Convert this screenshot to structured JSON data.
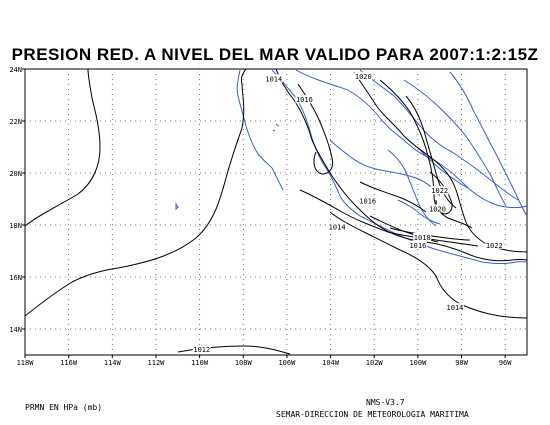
{
  "title": "PRESION RED. A NIVEL DEL MAR VALIDO PARA 2007:1:2:15Z",
  "footer": {
    "units": "PRMN EN HPa (mb)",
    "version": "NMS-V3.7",
    "agency": "SEMAR-DIRECCION DE METEOROLOGIA MARITIMA"
  },
  "axes": {
    "lon_range": [
      -118,
      -95
    ],
    "lat_range": [
      13,
      24
    ],
    "lat_ticks": [
      {
        "value": 24,
        "label": "24N"
      },
      {
        "value": 22,
        "label": "22N"
      },
      {
        "value": 20,
        "label": "20N"
      },
      {
        "value": 18,
        "label": "18N"
      },
      {
        "value": 16,
        "label": "16N"
      },
      {
        "value": 14,
        "label": "14N"
      }
    ],
    "lon_ticks": [
      {
        "value": -118,
        "label": "118W"
      },
      {
        "value": -116,
        "label": "116W"
      },
      {
        "value": -114,
        "label": "114W"
      },
      {
        "value": -112,
        "label": "112W"
      },
      {
        "value": -110,
        "label": "110W"
      },
      {
        "value": -108,
        "label": "108W"
      },
      {
        "value": -106,
        "label": "106W"
      },
      {
        "value": -104,
        "label": "104W"
      },
      {
        "value": -102,
        "label": "102W"
      },
      {
        "value": -100,
        "label": "100W"
      },
      {
        "value": -98,
        "label": "98W"
      },
      {
        "value": -96,
        "label": "96W"
      }
    ],
    "grid": "dotted"
  },
  "isobar_labels": [
    {
      "text": "1014",
      "lon": -106.6,
      "lat": 23.6
    },
    {
      "text": "1016",
      "lon": -105.2,
      "lat": 22.8
    },
    {
      "text": "1020",
      "lon": -102.5,
      "lat": 23.7
    },
    {
      "text": "1016",
      "lon": -102.3,
      "lat": 18.9
    },
    {
      "text": "1014",
      "lon": -103.7,
      "lat": 17.9
    },
    {
      "text": "1022",
      "lon": -99.0,
      "lat": 19.3
    },
    {
      "text": "1020",
      "lon": -99.1,
      "lat": 18.6
    },
    {
      "text": "1018",
      "lon": -99.8,
      "lat": 17.5
    },
    {
      "text": "1016",
      "lon": -100.0,
      "lat": 17.2
    },
    {
      "text": "1022",
      "lon": -96.5,
      "lat": 17.2
    },
    {
      "text": "1014",
      "lon": -98.3,
      "lat": 14.8
    },
    {
      "text": "1012",
      "lon": -109.9,
      "lat": 13.2
    }
  ],
  "colors": {
    "coastline": "#3a5fd0",
    "isobar": "#000000",
    "grid": "#555555",
    "frame": "#000000"
  }
}
